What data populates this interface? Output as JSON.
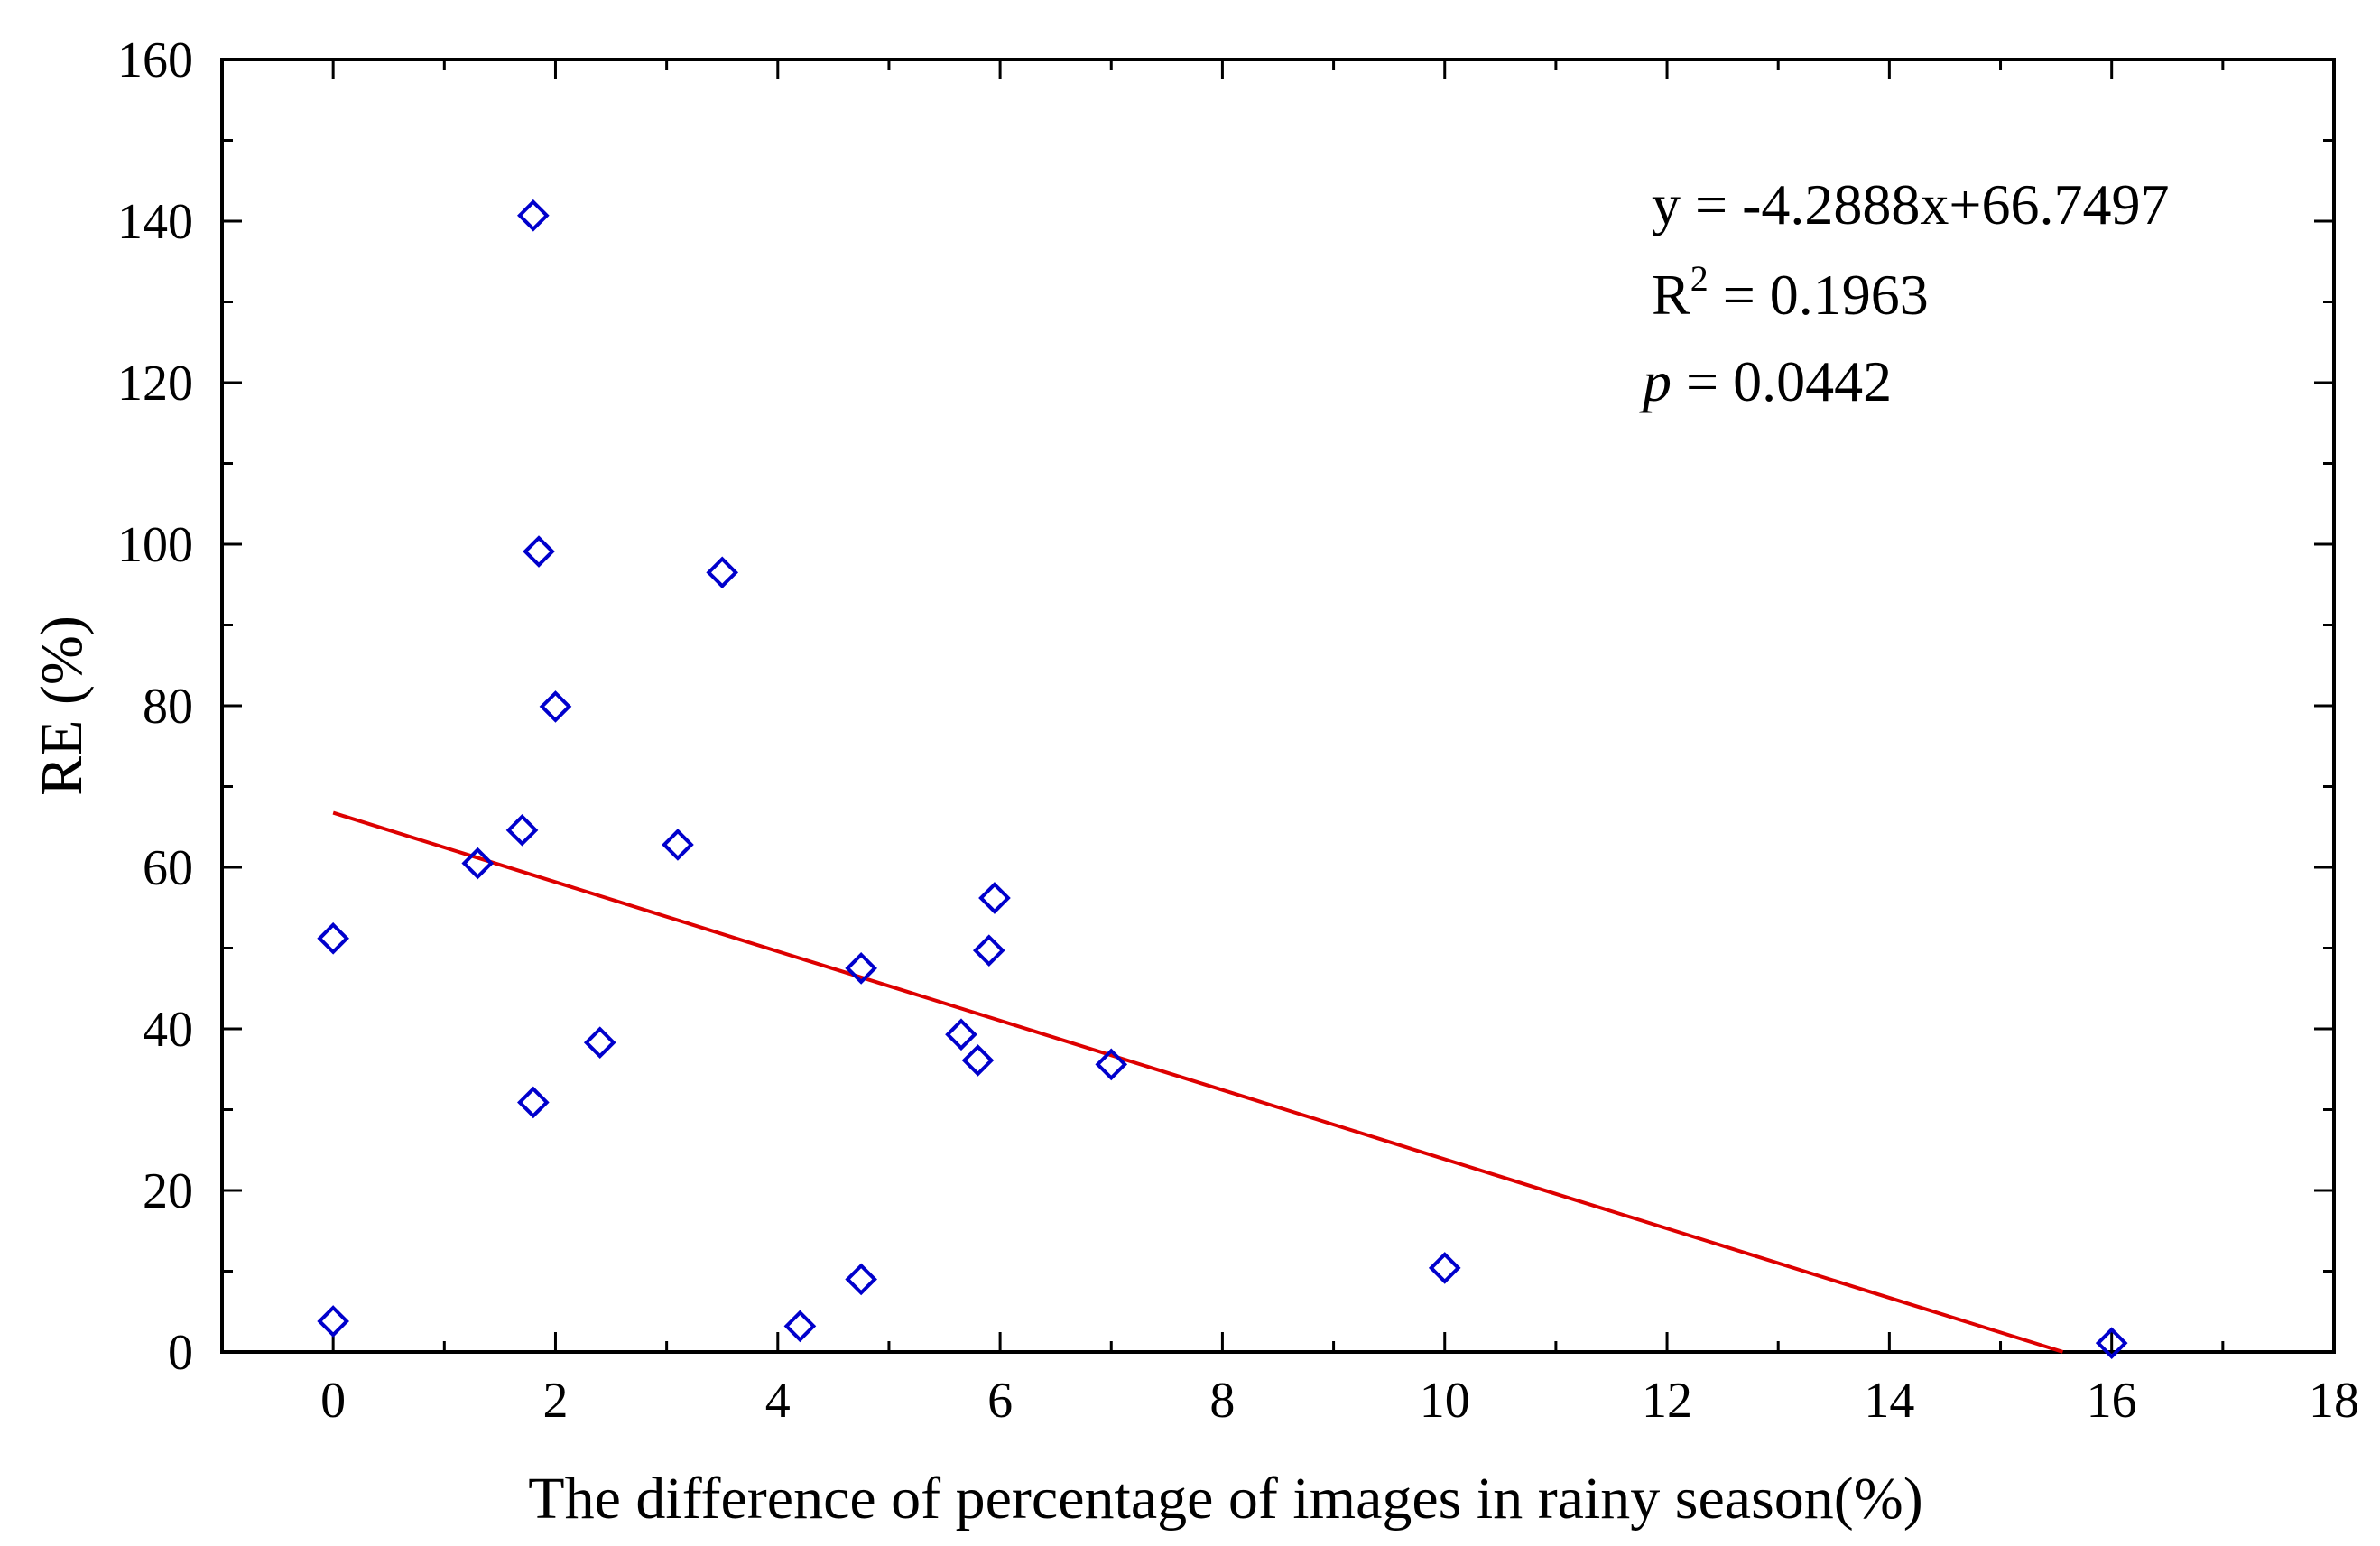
{
  "chart_data": {
    "type": "scatter",
    "title": "",
    "xlabel": "The difference of percentage of images in rainy season(%)",
    "ylabel": "RE (%)",
    "xlim": [
      -1,
      18
    ],
    "ylim": [
      0,
      160
    ],
    "xticks": [
      0,
      2,
      4,
      6,
      8,
      10,
      12,
      14,
      16,
      18
    ],
    "yticks": [
      0,
      20,
      40,
      60,
      80,
      100,
      120,
      140,
      160
    ],
    "grid": false,
    "legend": "none",
    "series": [
      {
        "name": "points",
        "marker": "open-diamond",
        "color": "#0000cc",
        "points": [
          {
            "x": 0.0,
            "y": 51.2
          },
          {
            "x": 0.0,
            "y": 3.8
          },
          {
            "x": 1.3,
            "y": 60.5
          },
          {
            "x": 1.7,
            "y": 64.6
          },
          {
            "x": 1.8,
            "y": 140.7
          },
          {
            "x": 1.85,
            "y": 99.1
          },
          {
            "x": 1.8,
            "y": 30.9
          },
          {
            "x": 2.0,
            "y": 79.9
          },
          {
            "x": 2.4,
            "y": 38.3
          },
          {
            "x": 3.1,
            "y": 62.8
          },
          {
            "x": 3.5,
            "y": 96.5
          },
          {
            "x": 4.2,
            "y": 3.2
          },
          {
            "x": 4.75,
            "y": 47.5
          },
          {
            "x": 4.75,
            "y": 9.0
          },
          {
            "x": 5.65,
            "y": 39.3
          },
          {
            "x": 5.8,
            "y": 36.1
          },
          {
            "x": 5.9,
            "y": 49.7
          },
          {
            "x": 5.95,
            "y": 56.2
          },
          {
            "x": 7.0,
            "y": 35.6
          },
          {
            "x": 10.0,
            "y": 10.4
          },
          {
            "x": 16.0,
            "y": 1.1
          }
        ]
      }
    ],
    "fit_line": {
      "slope": -4.2888,
      "intercept": 66.7497,
      "x_range": [
        0,
        15.56
      ],
      "color": "#dd0000"
    },
    "annotations": {
      "equation": "y = -4.2888x+66.7497",
      "r2_prefix": "R",
      "r2_sup": "2",
      "r2_value": " = 0.1963",
      "p_symbol": "p",
      "p_value": " = 0.0442"
    }
  }
}
